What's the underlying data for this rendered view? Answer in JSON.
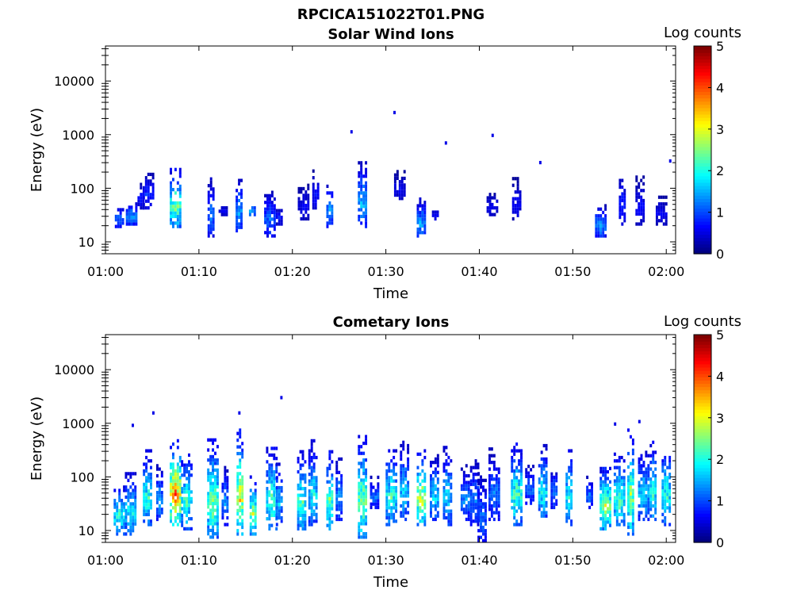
{
  "figure": {
    "filename": "RPCICA151022T01.PNG"
  },
  "chart_data": [
    {
      "type": "heatmap",
      "title": "Solar Wind Ions",
      "xlabel": "Time",
      "ylabel": "Energy (eV)",
      "yscale": "log",
      "ylim": [
        6,
        45000
      ],
      "xlim_minutes": [
        0,
        61
      ],
      "x_ticks": [
        "01:00",
        "01:10",
        "01:20",
        "01:30",
        "01:40",
        "01:50",
        "02:00"
      ],
      "y_ticks": [
        "10",
        "100",
        "1000",
        "10000"
      ],
      "colorbar": {
        "label": "Log counts",
        "range": [
          0,
          5
        ],
        "ticks": [
          "0",
          "1",
          "2",
          "3",
          "4",
          "5"
        ],
        "colormap": "jet"
      },
      "grid": false,
      "bursts": [
        {
          "t": 1.5,
          "e_low": 18,
          "e_high": 45,
          "peak": 1.3
        },
        {
          "t": 2.8,
          "e_low": 20,
          "e_high": 50,
          "peak": 1.6
        },
        {
          "t": 3.8,
          "e_low": 40,
          "e_high": 120,
          "peak": 0.8
        },
        {
          "t": 4.6,
          "e_low": 40,
          "e_high": 190,
          "peak": 1.0
        },
        {
          "t": 7.5,
          "e_low": 18,
          "e_high": 230,
          "peak": 2.8
        },
        {
          "t": 11.3,
          "e_low": 12,
          "e_high": 140,
          "peak": 1.4
        },
        {
          "t": 12.6,
          "e_low": 30,
          "e_high": 45,
          "peak": 0.7
        },
        {
          "t": 14.3,
          "e_low": 15,
          "e_high": 170,
          "peak": 1.6
        },
        {
          "t": 15.6,
          "e_low": 30,
          "e_high": 45,
          "peak": 1.7
        },
        {
          "t": 17.6,
          "e_low": 12,
          "e_high": 90,
          "peak": 1.3
        },
        {
          "t": 18.6,
          "e_low": 20,
          "e_high": 45,
          "peak": 0.8
        },
        {
          "t": 21.2,
          "e_low": 25,
          "e_high": 120,
          "peak": 0.7
        },
        {
          "t": 22.5,
          "e_low": 40,
          "e_high": 220,
          "peak": 0.8
        },
        {
          "t": 24.0,
          "e_low": 18,
          "e_high": 120,
          "peak": 1.7
        },
        {
          "t": 27.5,
          "e_low": 18,
          "e_high": 320,
          "peak": 1.8
        },
        {
          "t": 31.5,
          "e_low": 60,
          "e_high": 190,
          "peak": 0.7
        },
        {
          "t": 33.8,
          "e_low": 12,
          "e_high": 60,
          "peak": 1.7
        },
        {
          "t": 35.3,
          "e_low": 25,
          "e_high": 45,
          "peak": 0.7
        },
        {
          "t": 41.4,
          "e_low": 30,
          "e_high": 80,
          "peak": 0.7
        },
        {
          "t": 44.0,
          "e_low": 25,
          "e_high": 150,
          "peak": 0.7
        },
        {
          "t": 53.0,
          "e_low": 12,
          "e_high": 45,
          "peak": 1.6
        },
        {
          "t": 55.3,
          "e_low": 20,
          "e_high": 190,
          "peak": 1.0
        },
        {
          "t": 57.2,
          "e_low": 20,
          "e_high": 150,
          "peak": 0.8
        },
        {
          "t": 59.5,
          "e_low": 20,
          "e_high": 70,
          "peak": 0.7
        }
      ],
      "isolated": [
        {
          "t": 26.2,
          "e": 1050,
          "v": 0.5
        },
        {
          "t": 30.8,
          "e": 2400,
          "v": 0.5
        },
        {
          "t": 36.3,
          "e": 650,
          "v": 0.5
        },
        {
          "t": 41.3,
          "e": 900,
          "v": 0.5
        },
        {
          "t": 46.4,
          "e": 280,
          "v": 0.5
        },
        {
          "t": 60.3,
          "e": 300,
          "v": 0.5
        }
      ]
    },
    {
      "type": "heatmap",
      "title": "Cometary Ions",
      "xlabel": "Time",
      "ylabel": "Energy (eV)",
      "yscale": "log",
      "ylim": [
        6,
        45000
      ],
      "xlim_minutes": [
        0,
        61
      ],
      "x_ticks": [
        "01:00",
        "01:10",
        "01:20",
        "01:30",
        "01:40",
        "01:50",
        "02:00"
      ],
      "y_ticks": [
        "10",
        "100",
        "1000",
        "10000"
      ],
      "colorbar": {
        "label": "Log counts",
        "range": [
          0,
          5
        ],
        "ticks": [
          "0",
          "1",
          "2",
          "3",
          "4",
          "5"
        ],
        "colormap": "jet"
      },
      "grid": false,
      "bursts": [
        {
          "t": 1.5,
          "e_low": 8,
          "e_high": 70,
          "peak": 2.4
        },
        {
          "t": 2.7,
          "e_low": 8,
          "e_high": 120,
          "peak": 2.2
        },
        {
          "t": 4.5,
          "e_low": 12,
          "e_high": 300,
          "peak": 2.4
        },
        {
          "t": 5.8,
          "e_low": 15,
          "e_high": 180,
          "peak": 1.6
        },
        {
          "t": 7.5,
          "e_low": 12,
          "e_high": 500,
          "peak": 4.0
        },
        {
          "t": 8.7,
          "e_low": 10,
          "e_high": 300,
          "peak": 2.4
        },
        {
          "t": 11.5,
          "e_low": 7,
          "e_high": 550,
          "peak": 2.8
        },
        {
          "t": 12.8,
          "e_low": 12,
          "e_high": 150,
          "peak": 1.6
        },
        {
          "t": 14.4,
          "e_low": 8,
          "e_high": 700,
          "peak": 3.6
        },
        {
          "t": 15.8,
          "e_low": 8,
          "e_high": 100,
          "peak": 3.0
        },
        {
          "t": 17.8,
          "e_low": 10,
          "e_high": 350,
          "peak": 2.6
        },
        {
          "t": 18.6,
          "e_low": 12,
          "e_high": 200,
          "peak": 1.8
        },
        {
          "t": 21.0,
          "e_low": 10,
          "e_high": 300,
          "peak": 2.6
        },
        {
          "t": 22.2,
          "e_low": 12,
          "e_high": 450,
          "peak": 2.2
        },
        {
          "t": 24.0,
          "e_low": 10,
          "e_high": 280,
          "peak": 2.8
        },
        {
          "t": 25.0,
          "e_low": 15,
          "e_high": 220,
          "peak": 1.6
        },
        {
          "t": 27.5,
          "e_low": 7,
          "e_high": 600,
          "peak": 3.0
        },
        {
          "t": 28.8,
          "e_low": 25,
          "e_high": 100,
          "peak": 1.4
        },
        {
          "t": 30.6,
          "e_low": 12,
          "e_high": 350,
          "peak": 2.4
        },
        {
          "t": 32.0,
          "e_low": 15,
          "e_high": 450,
          "peak": 2.0
        },
        {
          "t": 33.8,
          "e_low": 12,
          "e_high": 300,
          "peak": 3.4
        },
        {
          "t": 35.2,
          "e_low": 15,
          "e_high": 250,
          "peak": 2.0
        },
        {
          "t": 36.6,
          "e_low": 12,
          "e_high": 400,
          "peak": 2.0
        },
        {
          "t": 38.5,
          "e_low": 15,
          "e_high": 150,
          "peak": 1.6
        },
        {
          "t": 39.5,
          "e_low": 12,
          "e_high": 250,
          "peak": 1.4
        },
        {
          "t": 40.3,
          "e_low": 6,
          "e_high": 120,
          "peak": 1.4
        },
        {
          "t": 41.6,
          "e_low": 15,
          "e_high": 350,
          "peak": 1.4
        },
        {
          "t": 44.0,
          "e_low": 12,
          "e_high": 400,
          "peak": 2.6
        },
        {
          "t": 45.4,
          "e_low": 30,
          "e_high": 160,
          "peak": 1.4
        },
        {
          "t": 46.8,
          "e_low": 15,
          "e_high": 400,
          "peak": 2.2
        },
        {
          "t": 48.0,
          "e_low": 25,
          "e_high": 150,
          "peak": 1.4
        },
        {
          "t": 49.6,
          "e_low": 12,
          "e_high": 450,
          "peak": 2.2
        },
        {
          "t": 51.8,
          "e_low": 25,
          "e_high": 100,
          "peak": 1.4
        },
        {
          "t": 53.5,
          "e_low": 10,
          "e_high": 150,
          "peak": 3.2
        },
        {
          "t": 55.0,
          "e_low": 12,
          "e_high": 300,
          "peak": 2.6
        },
        {
          "t": 56.2,
          "e_low": 8,
          "e_high": 700,
          "peak": 3.0
        },
        {
          "t": 57.6,
          "e_low": 15,
          "e_high": 350,
          "peak": 2.0
        },
        {
          "t": 58.6,
          "e_low": 15,
          "e_high": 450,
          "peak": 2.4
        },
        {
          "t": 60.0,
          "e_low": 12,
          "e_high": 450,
          "peak": 2.4
        }
      ],
      "isolated": [
        {
          "t": 2.8,
          "e": 850,
          "v": 0.5
        },
        {
          "t": 5.0,
          "e": 1450,
          "v": 0.5
        },
        {
          "t": 14.2,
          "e": 1450,
          "v": 0.5
        },
        {
          "t": 18.7,
          "e": 2800,
          "v": 0.5
        },
        {
          "t": 54.4,
          "e": 900,
          "v": 0.5
        },
        {
          "t": 57.0,
          "e": 1000,
          "v": 0.5
        }
      ]
    }
  ]
}
